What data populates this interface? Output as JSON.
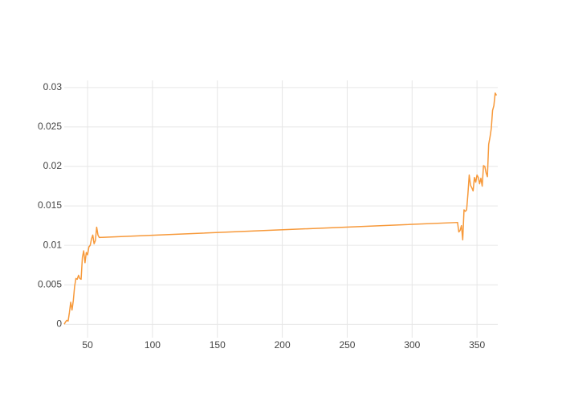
{
  "chart_data": {
    "type": "line",
    "x": [
      32,
      33,
      34,
      35,
      36,
      37,
      38,
      39,
      40,
      41,
      42,
      43,
      44,
      45,
      46,
      47,
      48,
      49,
      50,
      51,
      52,
      53,
      54,
      55,
      56,
      57,
      58,
      59,
      335,
      336,
      337,
      338,
      339,
      340,
      341,
      342,
      343,
      344,
      345,
      346,
      347,
      348,
      349,
      350,
      351,
      352,
      353,
      354,
      355,
      356,
      357,
      358,
      359,
      360,
      361,
      362,
      363,
      364,
      365
    ],
    "values": [
      0.0,
      0.0003,
      0.0005,
      0.0004,
      0.0015,
      0.0028,
      0.0018,
      0.003,
      0.0048,
      0.0058,
      0.0057,
      0.0062,
      0.0058,
      0.0057,
      0.0085,
      0.0093,
      0.0078,
      0.0091,
      0.0088,
      0.0098,
      0.01,
      0.0108,
      0.0113,
      0.0102,
      0.0106,
      0.0123,
      0.0113,
      0.011,
      0.0129,
      0.0117,
      0.0119,
      0.0125,
      0.0107,
      0.0145,
      0.0143,
      0.0145,
      0.0165,
      0.0189,
      0.0176,
      0.0173,
      0.0169,
      0.0186,
      0.018,
      0.0189,
      0.0186,
      0.0178,
      0.0185,
      0.0175,
      0.0201,
      0.02,
      0.0192,
      0.0187,
      0.0228,
      0.0237,
      0.0248,
      0.0271,
      0.0277,
      0.0293,
      0.029
    ],
    "color": "#f7993a",
    "xlim": [
      32,
      366
    ],
    "ylim": [
      -0.0017,
      0.0309
    ],
    "xticks": [
      50,
      100,
      150,
      200,
      250,
      300,
      350
    ],
    "yticks": [
      0,
      0.005,
      0.01,
      0.015,
      0.02,
      0.025,
      0.03
    ],
    "grid": true
  }
}
